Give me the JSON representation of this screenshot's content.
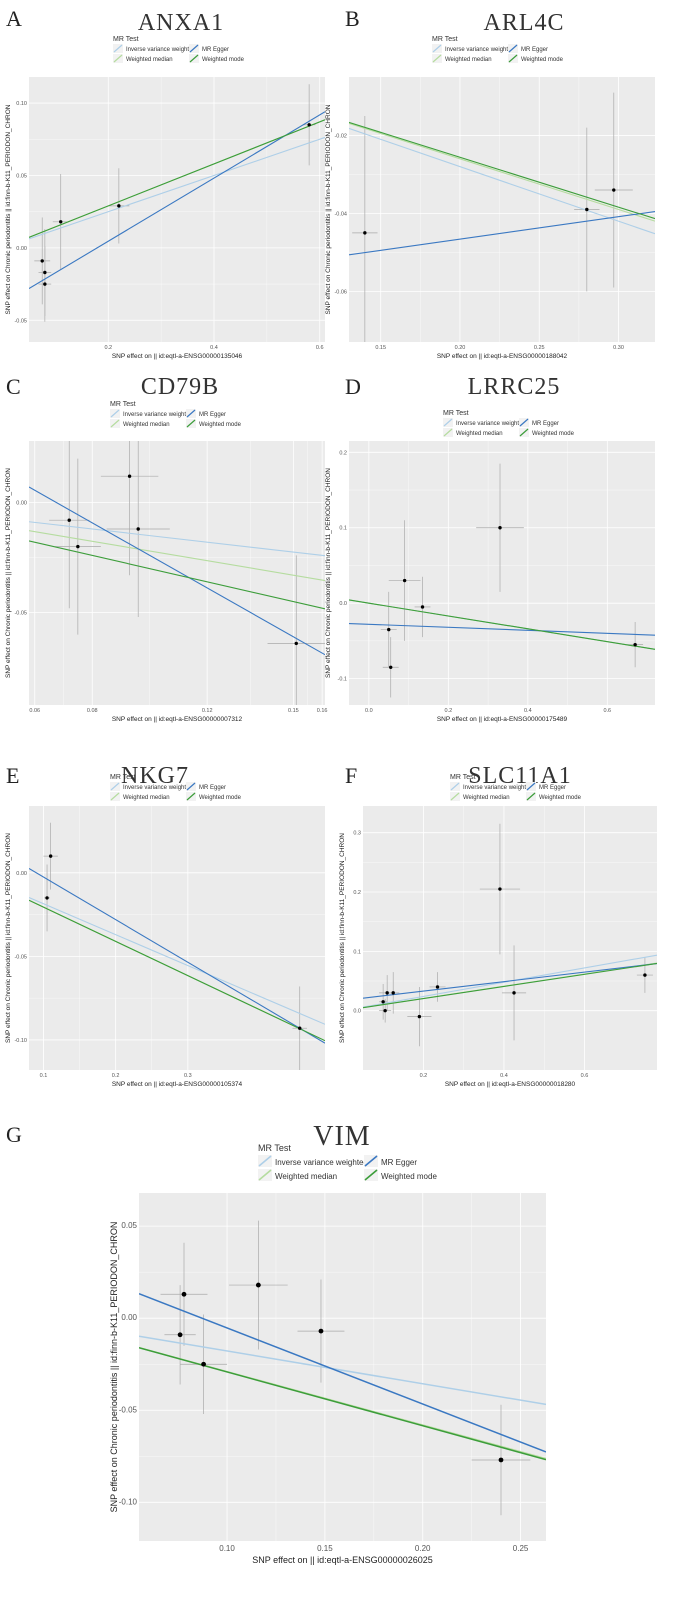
{
  "legend_title": "MR Test",
  "legend_entries": [
    {
      "label": "Inverse variance weighted",
      "color": "#aecfe8"
    },
    {
      "label": "MR Egger",
      "color": "#3a78c2"
    },
    {
      "label": "Weighted median",
      "color": "#b5dc9f"
    },
    {
      "label": "Weighted mode",
      "color": "#3c9d3a"
    }
  ],
  "colors": {
    "panel_bg": "#ebebeb",
    "grid": "#ffffff",
    "point": "#000000",
    "error_bar": "#aaaaaa"
  },
  "chart_data": [
    {
      "panel": "A",
      "title": "ANXA1",
      "type": "scatter",
      "xlabel": "SNP effect on || id:eqtl-a-ENSG00000135046",
      "ylabel": "SNP effect on Chronic periodontitis || id:finn-b-K11_PERIODON_CHRON",
      "xlim": [
        0.05,
        0.61
      ],
      "ylim": [
        -0.065,
        0.118
      ],
      "xticks": [
        0.2,
        0.4,
        0.6
      ],
      "xtick_labels": [
        "0.2",
        "0.4",
        "0.6"
      ],
      "yticks": [
        -0.05,
        0.0,
        0.05,
        0.1
      ],
      "ytick_labels": [
        "-0.05",
        "0.00",
        "0.05",
        "0.10"
      ],
      "points": [
        {
          "x": 0.075,
          "y": -0.009,
          "xerr": 0.015,
          "yerr": 0.03
        },
        {
          "x": 0.08,
          "y": -0.017,
          "xerr": 0.012,
          "yerr": 0.03
        },
        {
          "x": 0.08,
          "y": -0.025,
          "xerr": 0.012,
          "yerr": 0.026
        },
        {
          "x": 0.11,
          "y": 0.018,
          "xerr": 0.015,
          "yerr": 0.033
        },
        {
          "x": 0.22,
          "y": 0.029,
          "xerr": 0.02,
          "yerr": 0.026
        },
        {
          "x": 0.58,
          "y": 0.085,
          "xerr": 0.012,
          "yerr": 0.028
        }
      ],
      "lines": [
        {
          "method": "Inverse variance weighted",
          "intercept": 0.0,
          "slope": 0.125
        },
        {
          "method": "MR Egger",
          "intercept": -0.039,
          "slope": 0.218
        },
        {
          "method": "Weighted median",
          "intercept": 0.0,
          "slope": 0.145
        },
        {
          "method": "Weighted mode",
          "intercept": 0.0,
          "slope": 0.145
        }
      ]
    },
    {
      "panel": "B",
      "title": "ARL4C",
      "type": "scatter",
      "xlabel": "SNP effect on || id:eqtl-a-ENSG00000188042",
      "ylabel": "SNP effect on Chronic periodontitis || id:finn-b-K11_PERIODON_CHRON",
      "xlim": [
        0.13,
        0.323
      ],
      "ylim": [
        -0.073,
        -0.005
      ],
      "xticks": [
        0.15,
        0.2,
        0.25,
        0.3
      ],
      "xtick_labels": [
        "0.15",
        "0.20",
        "0.25",
        "0.30"
      ],
      "yticks": [
        -0.06,
        -0.04,
        -0.02
      ],
      "ytick_labels": [
        "-0.06",
        "-0.04",
        "-0.02"
      ],
      "points": [
        {
          "x": 0.14,
          "y": -0.045,
          "xerr": 0.008,
          "yerr": 0.03
        },
        {
          "x": 0.28,
          "y": -0.039,
          "xerr": 0.008,
          "yerr": 0.021
        },
        {
          "x": 0.297,
          "y": -0.034,
          "xerr": 0.012,
          "yerr": 0.025
        }
      ],
      "lines": [
        {
          "method": "Inverse variance weighted",
          "intercept": 0.0,
          "slope": -0.14
        },
        {
          "method": "MR Egger",
          "intercept": -0.0581,
          "slope": 0.0575
        },
        {
          "method": "Weighted median",
          "intercept": 0.0,
          "slope": -0.13
        },
        {
          "method": "Weighted mode",
          "intercept": 0.0,
          "slope": -0.128
        }
      ]
    },
    {
      "panel": "C",
      "title": "CD79B",
      "type": "scatter",
      "xlabel": "SNP effect on || id:eqtl-a-ENSG00000007312",
      "ylabel": "SNP effect on Chronic periodontitis || id:finn-b-K11_PERIODON_CHRON",
      "xlim": [
        0.058,
        0.161
      ],
      "ylim": [
        -0.092,
        0.028
      ],
      "xticks": [
        0.06,
        0.08,
        0.12,
        0.15,
        0.16
      ],
      "xtick_labels": [
        "0.06",
        "0.08",
        "0.12",
        "0.15",
        "0.16"
      ],
      "yticks": [
        -0.05,
        0.0
      ],
      "ytick_labels": [
        "-0.05",
        "0.00"
      ],
      "points": [
        {
          "x": 0.072,
          "y": -0.008,
          "xerr": 0.007,
          "yerr": 0.04
        },
        {
          "x": 0.075,
          "y": -0.02,
          "xerr": 0.008,
          "yerr": 0.04
        },
        {
          "x": 0.093,
          "y": 0.012,
          "xerr": 0.01,
          "yerr": 0.045
        },
        {
          "x": 0.096,
          "y": -0.012,
          "xerr": 0.011,
          "yerr": 0.04
        },
        {
          "x": 0.151,
          "y": -0.064,
          "xerr": 0.01,
          "yerr": 0.04
        }
      ],
      "lines": [
        {
          "method": "Inverse variance weighted",
          "intercept": 0.0,
          "slope": -0.15
        },
        {
          "method": "MR Egger",
          "intercept": 0.05,
          "slope": -0.74
        },
        {
          "method": "Weighted median",
          "intercept": 0.0,
          "slope": -0.22
        },
        {
          "method": "Weighted mode",
          "intercept": 0.0,
          "slope": -0.3
        }
      ]
    },
    {
      "panel": "D",
      "title": "LRRC25",
      "type": "scatter",
      "xlabel": "SNP effect on || id:eqtl-a-ENSG00000175489",
      "ylabel": "SNP effect on Chronic periodontitis || id:finn-b-K11_PERIODON_CHRON",
      "xlim": [
        -0.05,
        0.72
      ],
      "ylim": [
        -0.135,
        0.215
      ],
      "xticks": [
        0.0,
        0.2,
        0.4,
        0.6
      ],
      "xtick_labels": [
        "0.0",
        "0.2",
        "0.4",
        "0.6"
      ],
      "yticks": [
        -0.1,
        0.0,
        0.1,
        0.2
      ],
      "ytick_labels": [
        "-0.1",
        "0.0",
        "0.1",
        "0.2"
      ],
      "points": [
        {
          "x": 0.05,
          "y": -0.035,
          "xerr": 0.02,
          "yerr": 0.05
        },
        {
          "x": 0.055,
          "y": -0.085,
          "xerr": 0.02,
          "yerr": 0.04
        },
        {
          "x": 0.09,
          "y": 0.03,
          "xerr": 0.04,
          "yerr": 0.08
        },
        {
          "x": 0.135,
          "y": -0.005,
          "xerr": 0.02,
          "yerr": 0.04
        },
        {
          "x": 0.33,
          "y": 0.1,
          "xerr": 0.06,
          "yerr": 0.085
        },
        {
          "x": 0.67,
          "y": -0.055,
          "xerr": 0.02,
          "yerr": 0.03
        }
      ],
      "lines": [
        {
          "method": "Inverse variance weighted",
          "intercept": 0.0,
          "slope": -0.085
        },
        {
          "method": "MR Egger",
          "intercept": -0.028,
          "slope": -0.02
        },
        {
          "method": "Weighted median",
          "intercept": 0.0,
          "slope": -0.085
        },
        {
          "method": "Weighted mode",
          "intercept": 0.0,
          "slope": -0.085
        }
      ]
    },
    {
      "panel": "E",
      "title": "NKG7",
      "type": "scatter",
      "xlabel": "SNP effect on || id:eqtl-a-ENSG00000105374",
      "ylabel": "SNP effect on Chronic periodontitis || id:finn-b-K11_PERIODON_CHRON",
      "xlim": [
        0.08,
        0.49
      ],
      "ylim": [
        -0.118,
        0.04
      ],
      "xticks": [
        0.1,
        0.2,
        0.3
      ],
      "xtick_labels": [
        "0.1",
        "0.2",
        "0.3"
      ],
      "yticks": [
        -0.1,
        -0.05,
        0.0
      ],
      "ytick_labels": [
        "-0.10",
        "-0.05",
        "0.00"
      ],
      "points": [
        {
          "x": 0.105,
          "y": -0.015,
          "xerr": 0.004,
          "yerr": 0.02
        },
        {
          "x": 0.11,
          "y": 0.01,
          "xerr": 0.01,
          "yerr": 0.02
        },
        {
          "x": 0.455,
          "y": -0.093,
          "xerr": 0.01,
          "yerr": 0.025
        }
      ],
      "lines": [
        {
          "method": "Inverse variance weighted",
          "intercept": 0.0,
          "slope": -0.185
        },
        {
          "method": "MR Egger",
          "intercept": 0.023,
          "slope": -0.255
        },
        {
          "method": "Weighted median",
          "intercept": 0.0,
          "slope": -0.205
        },
        {
          "method": "Weighted mode",
          "intercept": 0.0,
          "slope": -0.205
        }
      ]
    },
    {
      "panel": "F",
      "title": "SLC11A1",
      "type": "scatter",
      "xlabel": "SNP effect on || id:eqtl-a-ENSG00000018280",
      "ylabel": "SNP effect on Chronic periodontitis || id:finn-b-K11_PERIODON_CHRON",
      "xlim": [
        0.05,
        0.78
      ],
      "ylim": [
        -0.1,
        0.345
      ],
      "xticks": [
        0.2,
        0.4,
        0.6
      ],
      "xtick_labels": [
        "0.2",
        "0.4",
        "0.6"
      ],
      "yticks": [
        0.0,
        0.1,
        0.2,
        0.3
      ],
      "ytick_labels": [
        "0.0",
        "0.1",
        "0.2",
        "0.3"
      ],
      "points": [
        {
          "x": 0.1,
          "y": 0.015,
          "xerr": 0.01,
          "yerr": 0.03
        },
        {
          "x": 0.105,
          "y": 0.0,
          "xerr": 0.015,
          "yerr": 0.02
        },
        {
          "x": 0.11,
          "y": 0.03,
          "xerr": 0.02,
          "yerr": 0.03
        },
        {
          "x": 0.125,
          "y": 0.03,
          "xerr": 0.015,
          "yerr": 0.035
        },
        {
          "x": 0.19,
          "y": -0.01,
          "xerr": 0.03,
          "yerr": 0.05
        },
        {
          "x": 0.235,
          "y": 0.04,
          "xerr": 0.02,
          "yerr": 0.025
        },
        {
          "x": 0.39,
          "y": 0.205,
          "xerr": 0.05,
          "yerr": 0.11
        },
        {
          "x": 0.425,
          "y": 0.03,
          "xerr": 0.03,
          "yerr": 0.08
        },
        {
          "x": 0.75,
          "y": 0.06,
          "xerr": 0.02,
          "yerr": 0.03
        }
      ],
      "lines": [
        {
          "method": "Inverse variance weighted",
          "intercept": 0.0,
          "slope": 0.12
        },
        {
          "method": "MR Egger",
          "intercept": 0.017,
          "slope": 0.08
        },
        {
          "method": "Weighted median",
          "intercept": 0.0,
          "slope": 0.103
        },
        {
          "method": "Weighted mode",
          "intercept": 0.0,
          "slope": 0.102
        }
      ]
    },
    {
      "panel": "G",
      "title": "VIM",
      "type": "scatter",
      "xlabel": "SNP effect on || id:eqtl-a-ENSG00000026025",
      "ylabel": "SNP effect on Chronic periodontitis || id:finn-b-K11_PERIODON_CHRON",
      "xlim": [
        0.055,
        0.263
      ],
      "ylim": [
        -0.121,
        0.068
      ],
      "xticks": [
        0.1,
        0.15,
        0.2,
        0.25
      ],
      "xtick_labels": [
        "0.10",
        "0.15",
        "0.20",
        "0.25"
      ],
      "yticks": [
        -0.1,
        -0.05,
        0.0,
        0.05
      ],
      "ytick_labels": [
        "-0.10",
        "-0.05",
        "0.00",
        "0.05"
      ],
      "points": [
        {
          "x": 0.076,
          "y": -0.009,
          "xerr": 0.008,
          "yerr": 0.027
        },
        {
          "x": 0.078,
          "y": 0.013,
          "xerr": 0.012,
          "yerr": 0.028
        },
        {
          "x": 0.088,
          "y": -0.025,
          "xerr": 0.012,
          "yerr": 0.027
        },
        {
          "x": 0.116,
          "y": 0.018,
          "xerr": 0.015,
          "yerr": 0.035
        },
        {
          "x": 0.148,
          "y": -0.007,
          "xerr": 0.012,
          "yerr": 0.028
        },
        {
          "x": 0.24,
          "y": -0.077,
          "xerr": 0.015,
          "yerr": 0.03
        }
      ],
      "lines": [
        {
          "method": "Inverse variance weighted",
          "intercept": 0.0,
          "slope": -0.178
        },
        {
          "method": "MR Egger",
          "intercept": 0.036,
          "slope": -0.413
        },
        {
          "method": "Weighted median",
          "intercept": 0.0,
          "slope": -0.29
        },
        {
          "method": "Weighted mode",
          "intercept": 0.0,
          "slope": -0.292
        }
      ]
    }
  ]
}
